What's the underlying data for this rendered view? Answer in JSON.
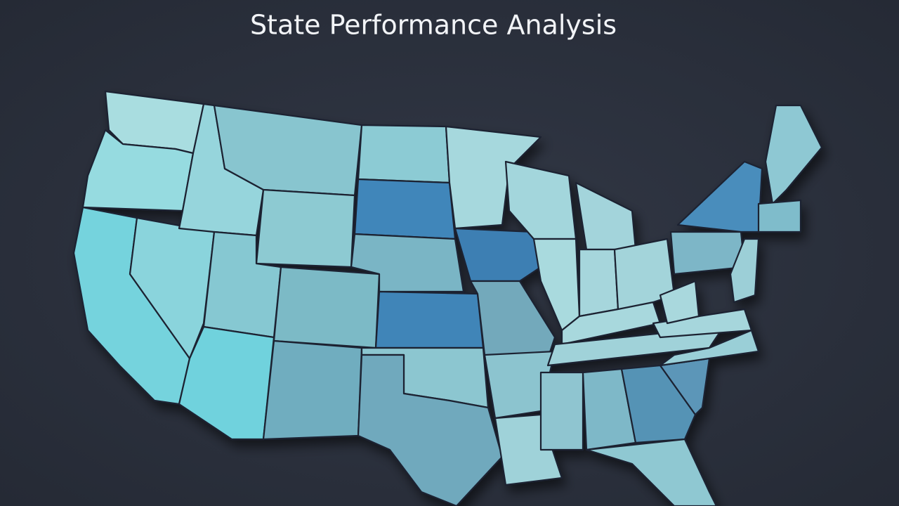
{
  "subtitle": "State Performance Analysis"
}
